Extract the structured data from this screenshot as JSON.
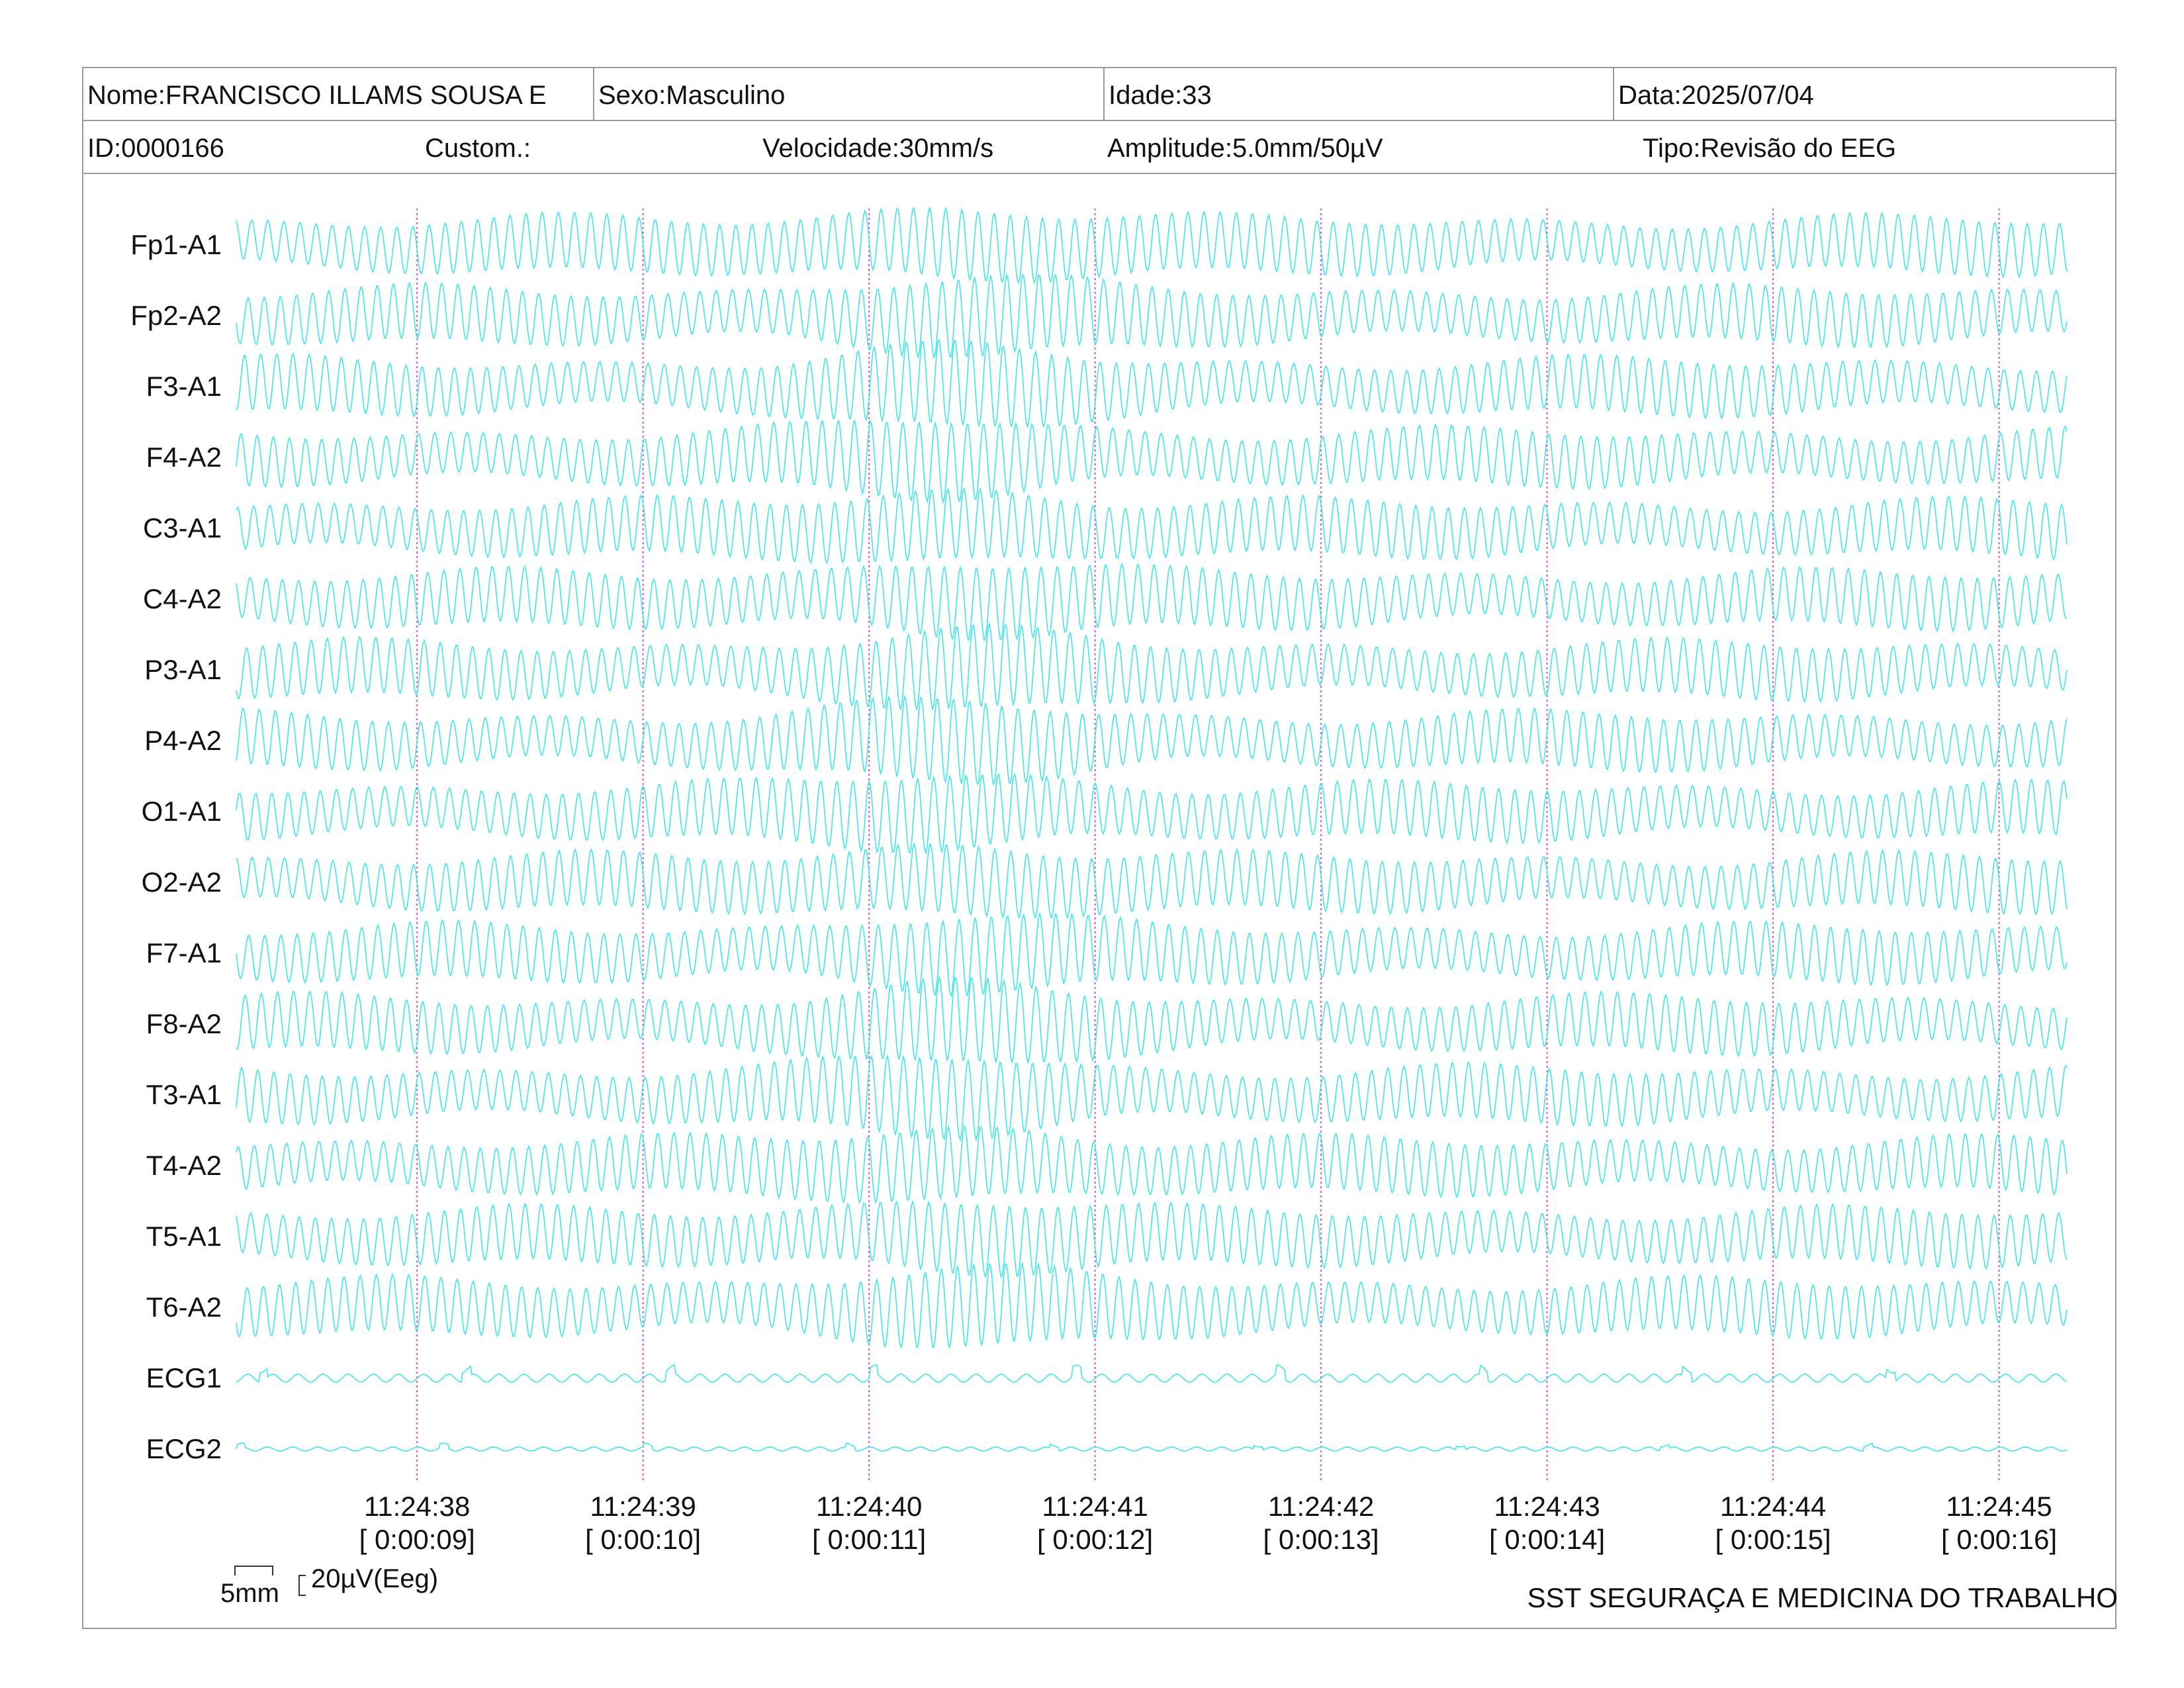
{
  "header": {
    "nome": "Nome:FRANCISCO ILLAMS SOUSA E",
    "sexo": "Sexo:Masculino",
    "idade": "Idade:33",
    "data": "Data:2025/07/04",
    "id": "ID:0000166",
    "custom": "Custom.:",
    "velocidade": "Velocidade:30mm/s",
    "amplitude": "Amplitude:5.0mm/50µV",
    "tipo": "Tipo:Revisão do EEG"
  },
  "scale": {
    "mm_label": "5mm",
    "uv_label": "20µV(Eeg)"
  },
  "footer": {
    "organization": "SST SEGURAÇA E MEDICINA DO TRABALHO"
  },
  "colors": {
    "trace": "#3ee6ec",
    "marker": "#e04ad8",
    "border": "#9a9a9a"
  },
  "chart_data": {
    "type": "line",
    "title": "",
    "channels": [
      "Fp1-A1",
      "Fp2-A2",
      "F3-A1",
      "F4-A2",
      "C3-A1",
      "C4-A2",
      "P3-A1",
      "P4-A2",
      "O1-A1",
      "O2-A2",
      "F7-A1",
      "F8-A2",
      "T3-A1",
      "T4-A2",
      "T5-A1",
      "T6-A2",
      "ECG1",
      "ECG2"
    ],
    "time_markers": [
      {
        "clock": "11:24:38",
        "elapsed": "[ 0:00:09]"
      },
      {
        "clock": "11:24:39",
        "elapsed": "[ 0:00:10]"
      },
      {
        "clock": "11:24:40",
        "elapsed": "[ 0:00:11]"
      },
      {
        "clock": "11:24:41",
        "elapsed": "[ 0:00:12]"
      },
      {
        "clock": "11:24:42",
        "elapsed": "[ 0:00:13]"
      },
      {
        "clock": "11:24:43",
        "elapsed": "[ 0:00:14]"
      },
      {
        "clock": "11:24:44",
        "elapsed": "[ 0:00:15]"
      },
      {
        "clock": "11:24:45",
        "elapsed": "[ 0:00:16]"
      }
    ],
    "x_range_seconds": [
      8.2,
      16.3
    ],
    "eeg_dominant_frequency_hz": 14,
    "grid": false,
    "legend": "none"
  }
}
